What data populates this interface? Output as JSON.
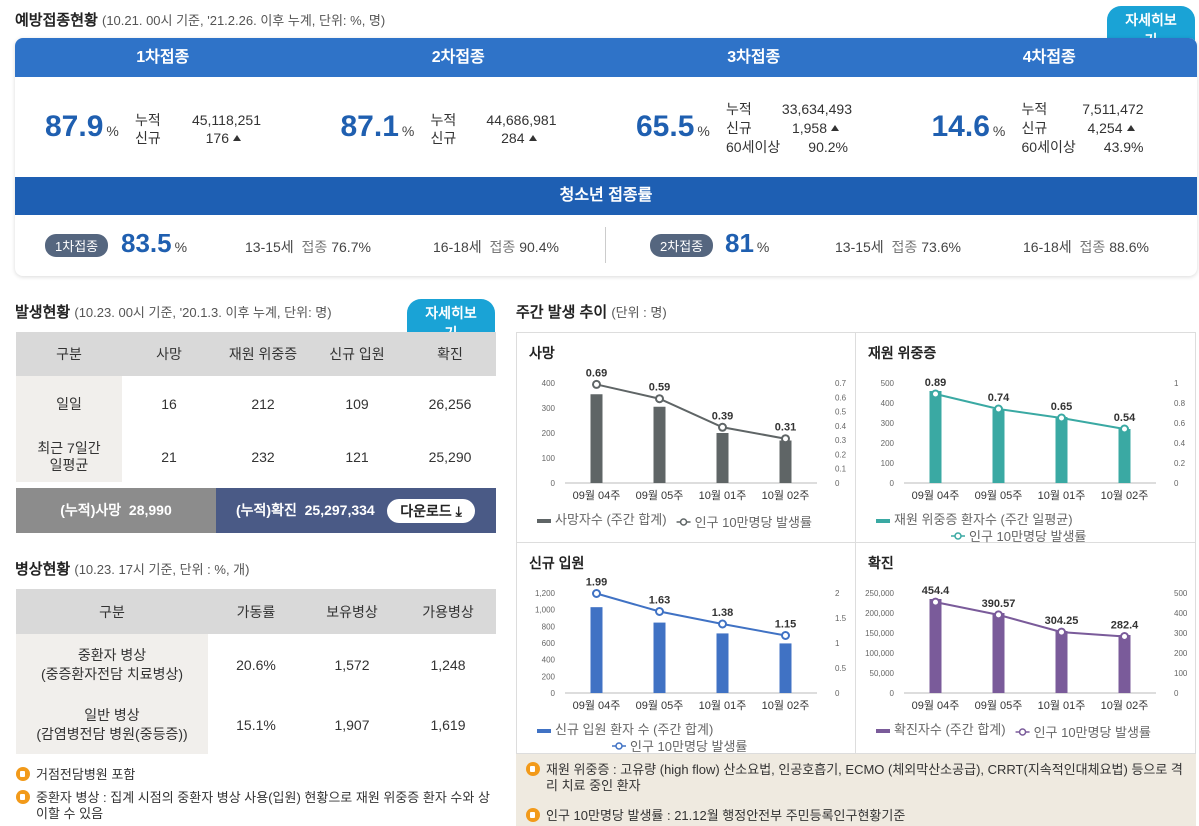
{
  "vaccination": {
    "title": "예방접종현황",
    "subtitle": "(10.21. 00시 기준, '21.2.26. 이후 누계, 단위: %, 명)",
    "detail_button": "자세히보기",
    "doses": [
      {
        "header": "1차접종",
        "rate": "87.9",
        "unit": "%",
        "rows": [
          {
            "k": "누적",
            "v": "45,118,251"
          },
          {
            "k": "신규",
            "v": "176"
          }
        ]
      },
      {
        "header": "2차접종",
        "rate": "87.1",
        "unit": "%",
        "rows": [
          {
            "k": "누적",
            "v": "44,686,981"
          },
          {
            "k": "신규",
            "v": "284"
          }
        ]
      },
      {
        "header": "3차접종",
        "rate": "65.5",
        "unit": "%",
        "rows": [
          {
            "k": "누적",
            "v": "33,634,493"
          },
          {
            "k": "신규",
            "v": "1,958"
          },
          {
            "k": "60세이상",
            "v": "90.2%"
          }
        ]
      },
      {
        "header": "4차접종",
        "rate": "14.6",
        "unit": "%",
        "rows": [
          {
            "k": "누적",
            "v": "7,511,472"
          },
          {
            "k": "신규",
            "v": "4,254"
          },
          {
            "k": "60세이상",
            "v": "43.9%"
          }
        ]
      }
    ],
    "youth": {
      "title": "청소년 접종률",
      "groups": [
        {
          "badge": "1차접종",
          "rate": "83.5",
          "unit": "%",
          "items": [
            {
              "age": "13-15세",
              "label": "접종",
              "val": "76.7%"
            },
            {
              "age": "16-18세",
              "label": "접종",
              "val": "90.4%"
            }
          ]
        },
        {
          "badge": "2차접종",
          "rate": "81",
          "unit": "%",
          "items": [
            {
              "age": "13-15세",
              "label": "접종",
              "val": "73.6%"
            },
            {
              "age": "16-18세",
              "label": "접종",
              "val": "88.6%"
            }
          ]
        }
      ]
    }
  },
  "occurrence": {
    "title": "발생현황",
    "subtitle": "(10.23. 00시 기준, '20.1.3. 이후 누계, 단위: 명)",
    "detail_button": "자세히보기",
    "headers": [
      "구분",
      "사망",
      "재원 위중증",
      "신규 입원",
      "확진"
    ],
    "rows": [
      {
        "label": "일일",
        "values": [
          "16",
          "212",
          "109",
          "26,256"
        ]
      },
      {
        "label": "최근 7일간\n일평균",
        "values": [
          "21",
          "232",
          "121",
          "25,290"
        ]
      }
    ],
    "cum_death_label": "(누적)사망",
    "cum_death": "28,990",
    "cum_conf_label": "(누적)확진",
    "cum_conf": "25,297,334",
    "download": "다운로드"
  },
  "beds": {
    "title": "병상현황",
    "subtitle": "(10.23. 17시 기준, 단위 : %, 개)",
    "headers": [
      "구분",
      "가동률",
      "보유병상",
      "가용병상"
    ],
    "rows": [
      {
        "label": "중환자 병상\n(중증환자전담 치료병상)",
        "values": [
          "20.6%",
          "1,572",
          "1,248"
        ]
      },
      {
        "label": "일반 병상\n(감염병전담 병원(중등증))",
        "values": [
          "15.1%",
          "1,907",
          "1,619"
        ]
      }
    ],
    "notes": [
      "거점전담병원 포함",
      "중환자 병상 : 집계 시점의 중환자 병상 사용(입원) 현황으로 재원 위중증 환자 수와 상이할 수 있음"
    ]
  },
  "weekly": {
    "title": "주간 발생 추이",
    "subtitle": "(단위 : 명)",
    "notes": [
      "재원 위중증 : 고유량 (high flow) 산소요법, 인공호흡기, ECMO (체외막산소공급), CRRT(지속적인대체요법) 등으로 격리 치료 중인 환자",
      "인구 10만명당 발생률 : 21.12월 행정안전부 주민등록인구현황기준"
    ]
  },
  "colors": {
    "accent": "#1aa3d6",
    "header_blue": "#2f73c8",
    "rate_blue": "#1f5fb0",
    "dark_gray": "#5f6566",
    "teal": "#3aa9a3",
    "blue_bar": "#4072c4",
    "purple": "#7a5b9a"
  },
  "chart_data": [
    {
      "type": "bar",
      "title": "사망",
      "categories": [
        "09월 04주",
        "09월 05주",
        "10월 01주",
        "10월 02주"
      ],
      "series": [
        {
          "name": "사망자수 (주간 합계)",
          "values": [
            355,
            305,
            200,
            170
          ]
        },
        {
          "name": "인구 10만명당 발생률",
          "values": [
            0.69,
            0.59,
            0.39,
            0.31
          ]
        }
      ],
      "ylim": [
        0,
        400
      ],
      "y_ticks": [
        "0",
        "100",
        "200",
        "300",
        "400"
      ],
      "y2lim": [
        0,
        0.7
      ],
      "y2_ticks": [
        "0",
        "0.1",
        "0.2",
        "0.3",
        "0.4",
        "0.5",
        "0.6",
        "0.7"
      ],
      "color": "#5f6566"
    },
    {
      "type": "bar",
      "title": "재원 위중증",
      "categories": [
        "09월 04주",
        "09월 05주",
        "10월 01주",
        "10월 02주"
      ],
      "series": [
        {
          "name": "재원 위중증 환자수 (주간 일평균)",
          "values": [
            460,
            370,
            330,
            270
          ]
        },
        {
          "name": "인구 10만명당 발생률",
          "values": [
            0.89,
            0.74,
            0.65,
            0.54
          ]
        }
      ],
      "ylim": [
        0,
        500
      ],
      "y_ticks": [
        "0",
        "100",
        "200",
        "300",
        "400",
        "500"
      ],
      "y2lim": [
        0,
        1
      ],
      "y2_ticks": [
        "0",
        "0.2",
        "0.4",
        "0.6",
        "0.8",
        "1"
      ],
      "color": "#3aa9a3"
    },
    {
      "type": "bar",
      "title": "신규 입원",
      "categories": [
        "09월 04주",
        "09월 05주",
        "10월 01주",
        "10월 02주"
      ],
      "series": [
        {
          "name": "신규 입원 환자 수 (주간 합계)",
          "values": [
            1030,
            845,
            715,
            595
          ]
        },
        {
          "name": "인구 10만명당 발생률",
          "values": [
            1.99,
            1.63,
            1.38,
            1.15
          ]
        }
      ],
      "ylim": [
        0,
        1200
      ],
      "y_ticks": [
        "0",
        "200",
        "400",
        "600",
        "800",
        "1,000",
        "1,200"
      ],
      "y2lim": [
        0,
        2
      ],
      "y2_ticks": [
        "0",
        "0.5",
        "1",
        "1.5",
        "2"
      ],
      "color": "#4072c4"
    },
    {
      "type": "bar",
      "title": "확진",
      "categories": [
        "09월 04주",
        "09월 05주",
        "10월 01주",
        "10월 02주"
      ],
      "series": [
        {
          "name": "확진자수 (주간 합계)",
          "values": [
            235000,
            200000,
            155000,
            145000
          ]
        },
        {
          "name": "인구 10만명당 발생률",
          "values": [
            454.4,
            390.57,
            304.25,
            282.4
          ]
        }
      ],
      "ylim": [
        0,
        250000
      ],
      "y_ticks": [
        "0",
        "50,000",
        "100,000",
        "150,000",
        "200,000",
        "250,000"
      ],
      "y2lim": [
        0,
        500
      ],
      "y2_ticks": [
        "0",
        "100",
        "200",
        "300",
        "400",
        "500"
      ],
      "color": "#7a5b9a"
    }
  ]
}
